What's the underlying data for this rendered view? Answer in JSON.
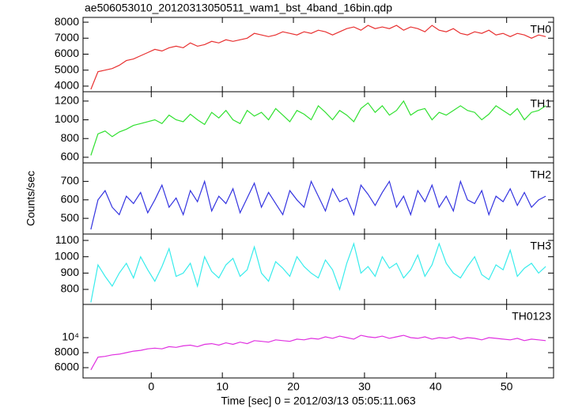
{
  "chart_data": [
    {
      "type": "line",
      "title": "ae506053010_20120313050511_wam1_bst_4band_16bin.qdp",
      "x": [
        -8.5,
        -7.5,
        -6.5,
        -5.5,
        -4.5,
        -3.5,
        -2.5,
        -1.5,
        -0.5,
        0.5,
        1.5,
        2.5,
        3.5,
        4.5,
        5.5,
        6.5,
        7.5,
        8.5,
        9.5,
        10.5,
        11.5,
        12.5,
        13.5,
        14.5,
        15.5,
        16.5,
        17.5,
        18.5,
        19.5,
        20.5,
        21.5,
        22.5,
        23.5,
        24.5,
        25.5,
        26.5,
        27.5,
        28.5,
        29.5,
        30.5,
        31.5,
        32.5,
        33.5,
        34.5,
        35.5,
        36.5,
        37.5,
        38.5,
        39.5,
        40.5,
        41.5,
        42.5,
        43.5,
        44.5,
        45.5,
        46.5,
        47.5,
        48.5,
        49.5,
        50.5,
        51.5,
        52.5,
        53.5,
        54.5,
        55.5
      ],
      "series": [
        {
          "name": "TH0",
          "color": "#e83030",
          "values": [
            3800,
            4900,
            5000,
            5100,
            5300,
            5600,
            5700,
            5900,
            6100,
            6300,
            6200,
            6400,
            6500,
            6400,
            6700,
            6500,
            6600,
            6800,
            6700,
            6900,
            6800,
            6900,
            7000,
            7300,
            7200,
            7100,
            7200,
            7400,
            7300,
            7200,
            7400,
            7300,
            7500,
            7400,
            7200,
            7400,
            7600,
            7700,
            7500,
            7800,
            7600,
            7700,
            7600,
            7800,
            7500,
            7700,
            7600,
            7400,
            7800,
            7500,
            7400,
            7600,
            7300,
            7200,
            7400,
            7300,
            7500,
            7200,
            7300,
            7100,
            7300,
            7200,
            7000,
            7200,
            7100
          ]
        }
      ],
      "xlim": [
        -9.6,
        56.6
      ],
      "xticks": [
        0,
        10,
        20,
        30,
        40,
        50
      ],
      "ylim": [
        3650,
        8300
      ],
      "yticks": [
        4000,
        5000,
        6000,
        7000,
        8000
      ]
    },
    {
      "type": "line",
      "x": [
        -8.5,
        -7.5,
        -6.5,
        -5.5,
        -4.5,
        -3.5,
        -2.5,
        -1.5,
        -0.5,
        0.5,
        1.5,
        2.5,
        3.5,
        4.5,
        5.5,
        6.5,
        7.5,
        8.5,
        9.5,
        10.5,
        11.5,
        12.5,
        13.5,
        14.5,
        15.5,
        16.5,
        17.5,
        18.5,
        19.5,
        20.5,
        21.5,
        22.5,
        23.5,
        24.5,
        25.5,
        26.5,
        27.5,
        28.5,
        29.5,
        30.5,
        31.5,
        32.5,
        33.5,
        34.5,
        35.5,
        36.5,
        37.5,
        38.5,
        39.5,
        40.5,
        41.5,
        42.5,
        43.5,
        44.5,
        45.5,
        46.5,
        47.5,
        48.5,
        49.5,
        50.5,
        51.5,
        52.5,
        53.5,
        54.5,
        55.5
      ],
      "series": [
        {
          "name": "TH1",
          "color": "#30e030",
          "values": [
            620,
            850,
            880,
            820,
            870,
            900,
            940,
            960,
            980,
            1000,
            960,
            1050,
            1000,
            980,
            1060,
            1000,
            950,
            1080,
            1020,
            1100,
            1000,
            960,
            1100,
            1040,
            1080,
            1000,
            1120,
            1050,
            980,
            1100,
            1060,
            1000,
            1150,
            1080,
            1000,
            1100,
            1050,
            980,
            1120,
            1180,
            1080,
            1150,
            1050,
            1100,
            1200,
            1050,
            1100,
            1120,
            1000,
            1080,
            1050,
            1100,
            1150,
            1100,
            1080,
            1000,
            1060,
            1150,
            1100,
            1050,
            1120,
            1000,
            1080,
            1100,
            1150
          ]
        }
      ],
      "xlim": [
        -9.6,
        56.6
      ],
      "xticks": [
        0,
        10,
        20,
        30,
        40,
        50
      ],
      "ylim": [
        540,
        1300
      ],
      "yticks": [
        600,
        800,
        1000,
        1200
      ]
    },
    {
      "type": "line",
      "y_label": "Counts/sec",
      "x": [
        -8.5,
        -7.5,
        -6.5,
        -5.5,
        -4.5,
        -3.5,
        -2.5,
        -1.5,
        -0.5,
        0.5,
        1.5,
        2.5,
        3.5,
        4.5,
        5.5,
        6.5,
        7.5,
        8.5,
        9.5,
        10.5,
        11.5,
        12.5,
        13.5,
        14.5,
        15.5,
        16.5,
        17.5,
        18.5,
        19.5,
        20.5,
        21.5,
        22.5,
        23.5,
        24.5,
        25.5,
        26.5,
        27.5,
        28.5,
        29.5,
        30.5,
        31.5,
        32.5,
        33.5,
        34.5,
        35.5,
        36.5,
        37.5,
        38.5,
        39.5,
        40.5,
        41.5,
        42.5,
        43.5,
        44.5,
        45.5,
        46.5,
        47.5,
        48.5,
        49.5,
        50.5,
        51.5,
        52.5,
        53.5,
        54.5,
        55.5
      ],
      "series": [
        {
          "name": "TH2",
          "color": "#3434e0",
          "values": [
            440,
            600,
            650,
            560,
            520,
            620,
            580,
            640,
            530,
            600,
            680,
            560,
            610,
            520,
            650,
            590,
            700,
            540,
            620,
            580,
            660,
            530,
            610,
            690,
            560,
            640,
            580,
            520,
            650,
            600,
            560,
            700,
            620,
            540,
            660,
            590,
            610,
            520,
            680,
            630,
            570,
            640,
            700,
            560,
            620,
            520,
            650,
            590,
            680,
            560,
            620,
            540,
            700,
            600,
            580,
            650,
            520,
            620,
            590,
            660,
            570,
            640,
            560,
            600,
            620
          ]
        }
      ],
      "xlim": [
        -9.6,
        56.6
      ],
      "xticks": [
        0,
        10,
        20,
        30,
        40,
        50
      ],
      "ylim": [
        415,
        800
      ],
      "yticks": [
        500,
        600,
        700
      ]
    },
    {
      "type": "line",
      "x": [
        -8.5,
        -7.5,
        -6.5,
        -5.5,
        -4.5,
        -3.5,
        -2.5,
        -1.5,
        -0.5,
        0.5,
        1.5,
        2.5,
        3.5,
        4.5,
        5.5,
        6.5,
        7.5,
        8.5,
        9.5,
        10.5,
        11.5,
        12.5,
        13.5,
        14.5,
        15.5,
        16.5,
        17.5,
        18.5,
        19.5,
        20.5,
        21.5,
        22.5,
        23.5,
        24.5,
        25.5,
        26.5,
        27.5,
        28.5,
        29.5,
        30.5,
        31.5,
        32.5,
        33.5,
        34.5,
        35.5,
        36.5,
        37.5,
        38.5,
        39.5,
        40.5,
        41.5,
        42.5,
        43.5,
        44.5,
        45.5,
        46.5,
        47.5,
        48.5,
        49.5,
        50.5,
        51.5,
        52.5,
        53.5,
        54.5,
        55.5
      ],
      "series": [
        {
          "name": "TH3",
          "color": "#38ecec",
          "values": [
            720,
            950,
            880,
            820,
            900,
            960,
            870,
            1000,
            920,
            850,
            940,
            1050,
            880,
            900,
            960,
            820,
            1000,
            910,
            870,
            950,
            990,
            880,
            920,
            1060,
            900,
            850,
            970,
            930,
            880,
            1000,
            940,
            900,
            870,
            980,
            920,
            800,
            960,
            1080,
            900,
            940,
            880,
            1000,
            930,
            960,
            870,
            920,
            1010,
            880,
            950,
            1080,
            960,
            900,
            870,
            940,
            1000,
            890,
            860,
            950,
            920,
            1040,
            880,
            930,
            960,
            900,
            940
          ]
        }
      ],
      "xlim": [
        -9.6,
        56.6
      ],
      "xticks": [
        0,
        10,
        20,
        30,
        40,
        50
      ],
      "ylim": [
        708,
        1139
      ],
      "yticks": [
        800,
        900,
        1000,
        1100
      ]
    },
    {
      "type": "line",
      "x_label": "Time [sec] 0 = 2012/03/13 05:05:11.063",
      "x": [
        -8.5,
        -7.5,
        -6.5,
        -5.5,
        -4.5,
        -3.5,
        -2.5,
        -1.5,
        -0.5,
        0.5,
        1.5,
        2.5,
        3.5,
        4.5,
        5.5,
        6.5,
        7.5,
        8.5,
        9.5,
        10.5,
        11.5,
        12.5,
        13.5,
        14.5,
        15.5,
        16.5,
        17.5,
        18.5,
        19.5,
        20.5,
        21.5,
        22.5,
        23.5,
        24.5,
        25.5,
        26.5,
        27.5,
        28.5,
        29.5,
        30.5,
        31.5,
        32.5,
        33.5,
        34.5,
        35.5,
        36.5,
        37.5,
        38.5,
        39.5,
        40.5,
        41.5,
        42.5,
        43.5,
        44.5,
        45.5,
        46.5,
        47.5,
        48.5,
        49.5,
        50.5,
        51.5,
        52.5,
        53.5,
        54.5,
        55.5
      ],
      "series": [
        {
          "name": "TH0123",
          "color": "#e030e0",
          "values": [
            5700,
            7400,
            7500,
            7700,
            7800,
            8000,
            8200,
            8300,
            8500,
            8600,
            8500,
            8800,
            8700,
            8900,
            9000,
            8800,
            9100,
            9200,
            9000,
            9300,
            9100,
            9400,
            9200,
            9600,
            9500,
            9400,
            9700,
            9600,
            9500,
            9800,
            9700,
            9900,
            9800,
            10100,
            9900,
            10200,
            10000,
            9800,
            10300,
            10100,
            10000,
            10200,
            9900,
            10100,
            10300,
            10000,
            9900,
            10100,
            9800,
            10000,
            9900,
            10100,
            9800,
            10000,
            9900,
            9700,
            10000,
            9900,
            9800,
            9700,
            9900,
            9600,
            9800,
            9700,
            9600
          ]
        }
      ],
      "xlim": [
        -9.6,
        56.6
      ],
      "xticks": [
        0,
        10,
        20,
        30,
        40,
        50
      ],
      "ylim": [
        4630,
        14420
      ],
      "yticks": [
        6000,
        8000,
        {
          "value": 10000,
          "label": "10⁴"
        }
      ]
    }
  ]
}
